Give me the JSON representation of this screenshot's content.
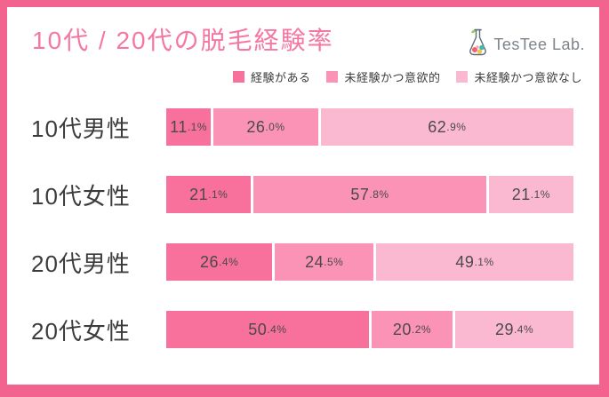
{
  "header": {
    "title": "10代 / 20代の脱毛経験率",
    "logo_text": "TesTee Lab."
  },
  "colors": {
    "frame": "#F26390",
    "title_text": "#F478A2",
    "series": [
      "#F7719C",
      "#FA93B5",
      "#FBB9D1"
    ],
    "category_text": "#3C3C3C",
    "value_text": "#4A4A4A",
    "logo_text": "#7E8489"
  },
  "legend": {
    "items": [
      "経験がある",
      "未経験かつ意欲的",
      "未経験かつ意欲なし"
    ]
  },
  "chart_data": {
    "type": "bar",
    "orientation": "horizontal",
    "stacked": true,
    "unit": "%",
    "title": "10代 / 20代の脱毛経験率",
    "categories": [
      "10代男性",
      "10代女性",
      "20代男性",
      "20代女性"
    ],
    "series": [
      {
        "name": "経験がある",
        "values": [
          11.1,
          21.1,
          26.4,
          50.4
        ]
      },
      {
        "name": "未経験かつ意欲的",
        "values": [
          26.0,
          57.8,
          24.5,
          20.2
        ]
      },
      {
        "name": "未経験かつ意欲なし",
        "values": [
          62.9,
          21.1,
          49.1,
          29.4
        ]
      }
    ],
    "value_labels": [
      [
        "11.1%",
        "26.0%",
        "62.9%"
      ],
      [
        "21.1%",
        "57.8%",
        "21.1%"
      ],
      [
        "26.4%",
        "24.5%",
        "49.1%"
      ],
      [
        "50.4%",
        "20.2%",
        "29.4%"
      ]
    ],
    "xlim": [
      0,
      100
    ],
    "grid": false,
    "legend_position": "top-right"
  }
}
